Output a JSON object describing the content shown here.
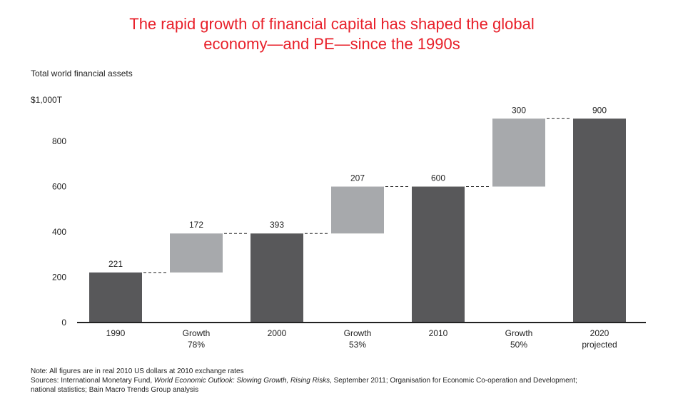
{
  "chart_data": {
    "type": "bar",
    "subtype": "waterfall",
    "title_line1": "The rapid growth of financial capital has shaped the global",
    "title_line2": "economy—and PE—since the 1990s",
    "ylabel": "Total world financial assets",
    "y_unit_label": "$1,000T",
    "ylim": [
      0,
      1000
    ],
    "yticks": [
      "0",
      "200",
      "400",
      "600",
      "800"
    ],
    "ytick_values": [
      0,
      200,
      400,
      600,
      800
    ],
    "categories": [
      {
        "line1": "1990",
        "line2": ""
      },
      {
        "line1": "Growth",
        "line2": "78%"
      },
      {
        "line1": "2000",
        "line2": ""
      },
      {
        "line1": "Growth",
        "line2": "53%"
      },
      {
        "line1": "2010",
        "line2": ""
      },
      {
        "line1": "Growth",
        "line2": "50%"
      },
      {
        "line1": "2020",
        "line2": "projected"
      }
    ],
    "bars": [
      {
        "kind": "total",
        "base": 0,
        "value": 221,
        "label": "221"
      },
      {
        "kind": "growth",
        "base": 221,
        "value": 172,
        "label": "172"
      },
      {
        "kind": "total",
        "base": 0,
        "value": 393,
        "label": "393"
      },
      {
        "kind": "growth",
        "base": 393,
        "value": 207,
        "label": "207"
      },
      {
        "kind": "total",
        "base": 0,
        "value": 600,
        "label": "600"
      },
      {
        "kind": "growth",
        "base": 600,
        "value": 300,
        "label": "300"
      },
      {
        "kind": "total",
        "base": 0,
        "value": 900,
        "label": "900"
      }
    ],
    "colors": {
      "total": "#58585a",
      "growth": "#a7a9ac",
      "axis": "#222222"
    },
    "grid": false
  },
  "notes": {
    "note": "Note: All figures are in real 2010 US dollars at 2010 exchange rates",
    "sources_prefix": "Sources: International Monetary Fund, ",
    "sources_italic": "World Economic Outlook: Slowing Growth, Rising Risks",
    "sources_suffix": ", September 2011; Organisation for Economic Co-operation and Development;",
    "sources_line2": "national statistics; Bain Macro Trends Group analysis"
  }
}
